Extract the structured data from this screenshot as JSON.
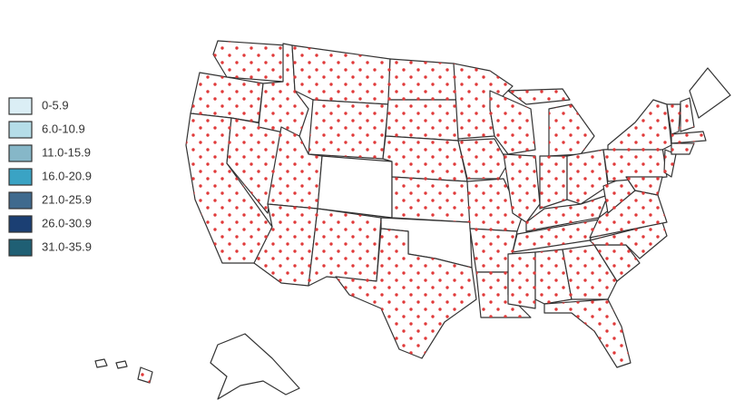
{
  "legend": {
    "items": [
      {
        "label": "0-5.9",
        "color": "#dbeef5"
      },
      {
        "label": "6.0-10.9",
        "color": "#b5dde8"
      },
      {
        "label": "11.0-15.9",
        "color": "#86b7c8"
      },
      {
        "label": "16.0-20.9",
        "color": "#3aa3c4"
      },
      {
        "label": "21.0-25.9",
        "color": "#3f6a8e"
      },
      {
        "label": "26.0-30.9",
        "color": "#1b3f73"
      },
      {
        "label": "31.0-35.9",
        "color": "#1f5f74"
      }
    ]
  }
}
